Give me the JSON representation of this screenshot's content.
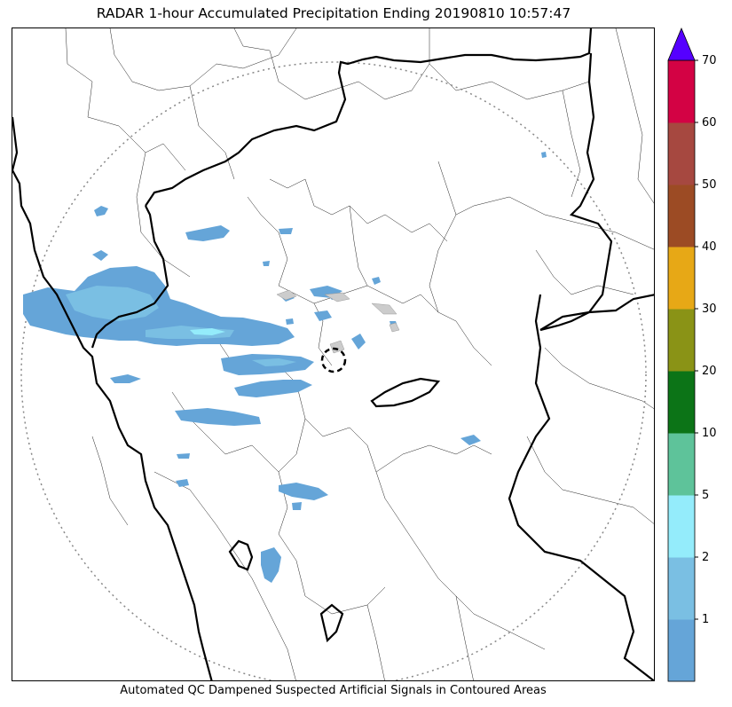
{
  "title": "RADAR 1-hour Accumulated Precipitation Ending 20190810 10:57:47",
  "footer": "Automated QC Dampened Suspected Artificial Signals in Contoured Areas",
  "colorbar": {
    "levels": [
      {
        "label": "",
        "color": "#65a5d8"
      },
      {
        "label": "1",
        "color": "#7abfe3"
      },
      {
        "label": "2",
        "color": "#94ecfb"
      },
      {
        "label": "5",
        "color": "#5ec39a"
      },
      {
        "label": "10",
        "color": "#0c7417"
      },
      {
        "label": "20",
        "color": "#8a9316"
      },
      {
        "label": "30",
        "color": "#e7a816"
      },
      {
        "label": "40",
        "color": "#9c4b24"
      },
      {
        "label": "50",
        "color": "#a64840"
      },
      {
        "label": "60",
        "color": "#d30244"
      }
    ],
    "top_label": "70",
    "extend_color": "#5500ff"
  },
  "colors": {
    "precip_light": "#65a5d8",
    "precip_mid": "#7abfe3",
    "precip_high": "#94ecfb",
    "range_ring": "#888888",
    "boundary": "#000000"
  }
}
